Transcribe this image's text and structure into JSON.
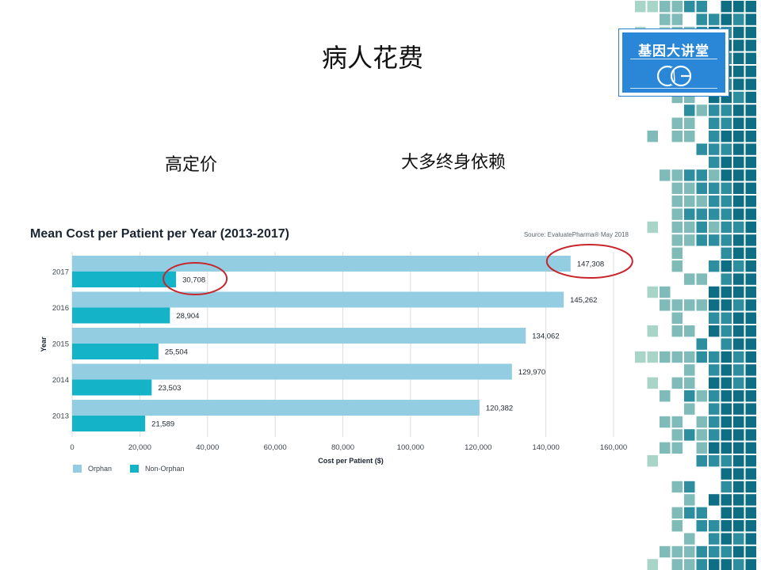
{
  "slide": {
    "title": "病人花费",
    "points": [
      "高定价",
      "大多终身依赖"
    ]
  },
  "logo": {
    "text": "基因大讲堂",
    "mark": "CG"
  },
  "colors": {
    "orphan": "#93cde2",
    "non_orphan": "#14b3c7",
    "highlight_circle": "#c8262c",
    "logo_blue": "#2a86d6",
    "mosaic": [
      "#0e6f84",
      "#2d8ea0",
      "#7fbcb9",
      "#a9d4c8",
      "#d5ebde"
    ]
  },
  "chart_data": {
    "type": "bar",
    "orientation": "horizontal",
    "title": "Mean Cost per Patient per Year (2013-2017)",
    "source": "Source: EvaluatePharma® May 2018",
    "categories": [
      "2017",
      "2016",
      "2015",
      "2014",
      "2013"
    ],
    "series": [
      {
        "name": "Orphan",
        "values": [
          147308,
          145262,
          134062,
          129970,
          120382
        ],
        "labels": [
          "147,308",
          "145,262",
          "134,062",
          "129,970",
          "120,382"
        ]
      },
      {
        "name": "Non-Orphan",
        "values": [
          30708,
          28904,
          25504,
          23503,
          21589
        ],
        "labels": [
          "30,708",
          "28,904",
          "25,504",
          "23,503",
          "21,589"
        ]
      }
    ],
    "xlabel": "Cost per Patient ($)",
    "ylabel": "Year",
    "xlim": [
      0,
      160000
    ],
    "xticks": [
      0,
      20000,
      40000,
      60000,
      80000,
      100000,
      120000,
      140000,
      160000
    ],
    "xtick_labels": [
      "0",
      "20,000",
      "40,000",
      "60,000",
      "80,000",
      "100,000",
      "120,000",
      "140,000",
      "160,000"
    ],
    "grid": true,
    "legend": "bottom-left",
    "annotations": [
      {
        "type": "circle",
        "category": "2017",
        "series": "Non-Orphan"
      },
      {
        "type": "circle",
        "category": "2017",
        "series": "Orphan"
      }
    ]
  }
}
